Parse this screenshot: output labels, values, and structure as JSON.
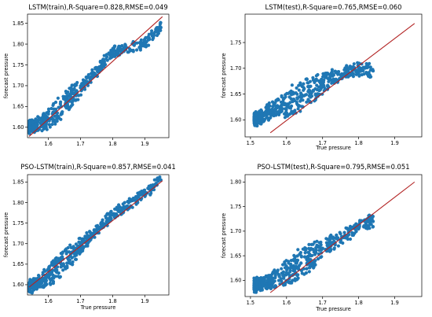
{
  "chart_data": [
    {
      "type": "scatter",
      "title": "LSTM(train),R-Square=0.828,RMSE=0.049",
      "xlabel": "",
      "ylabel": "forecast pressure",
      "xlim": [
        1.535,
        1.975
      ],
      "ylim": [
        1.575,
        1.872
      ],
      "xticks": [
        "1.6",
        "1.7",
        "1.8",
        "1.9"
      ],
      "yticks": [
        "1.60",
        "1.65",
        "1.70",
        "1.75",
        "1.80",
        "1.85"
      ],
      "point_color": "#1f77b4",
      "line_color": "#b22222",
      "fit_line": {
        "x": [
          1.54,
          1.955
        ],
        "y": [
          1.578,
          1.866
        ]
      },
      "series": [
        {
          "x": [
            1.54,
            1.56,
            1.58,
            1.6,
            1.62,
            1.64,
            1.66,
            1.68,
            1.7,
            1.72,
            1.74,
            1.76,
            1.8,
            1.9,
            1.95
          ],
          "y": [
            1.6,
            1.605,
            1.61,
            1.62,
            1.635,
            1.65,
            1.665,
            1.68,
            1.695,
            1.71,
            1.725,
            1.745,
            1.78,
            1.8,
            1.84
          ]
        }
      ]
    },
    {
      "type": "scatter",
      "title": "LSTM(test),R-Square=0.765,RMSE=0.060",
      "xlabel": "True pressure",
      "ylabel": "forecast pressure",
      "xlim": [
        1.485,
        1.975
      ],
      "ylim": [
        1.567,
        1.805
      ],
      "xticks": [
        "1.5",
        "1.6",
        "1.7",
        "1.8",
        "1.9"
      ],
      "yticks": [
        "1.60",
        "1.65",
        "1.70",
        "1.75"
      ],
      "point_color": "#1f77b4",
      "line_color": "#b22222",
      "fit_line": {
        "x": [
          1.555,
          1.955
        ],
        "y": [
          1.575,
          1.787
        ]
      },
      "series": [
        {
          "x": [
            1.51,
            1.54,
            1.56,
            1.58,
            1.6,
            1.62,
            1.64,
            1.66,
            1.68,
            1.7,
            1.72,
            1.76,
            1.8,
            1.84
          ],
          "y": [
            1.6,
            1.61,
            1.62,
            1.625,
            1.63,
            1.64,
            1.645,
            1.655,
            1.66,
            1.67,
            1.68,
            1.69,
            1.7,
            1.695
          ]
        }
      ]
    },
    {
      "type": "scatter",
      "title": "PSO-LSTM(train),R-Square=0.857,RMSE=0.041",
      "xlabel": "True pressure",
      "ylabel": "forecast pressure",
      "xlim": [
        1.535,
        1.975
      ],
      "ylim": [
        1.575,
        1.868
      ],
      "xticks": [
        "1.6",
        "1.7",
        "1.8",
        "1.9"
      ],
      "yticks": [
        "1.60",
        "1.65",
        "1.70",
        "1.75",
        "1.80",
        "1.85"
      ],
      "point_color": "#1f77b4",
      "line_color": "#b22222",
      "fit_line": {
        "x": [
          1.54,
          1.955
        ],
        "y": [
          1.594,
          1.853
        ]
      },
      "series": [
        {
          "x": [
            1.54,
            1.56,
            1.58,
            1.6,
            1.62,
            1.64,
            1.66,
            1.68,
            1.7,
            1.72,
            1.74,
            1.76,
            1.8,
            1.9,
            1.95
          ],
          "y": [
            1.595,
            1.6,
            1.61,
            1.62,
            1.635,
            1.65,
            1.665,
            1.68,
            1.695,
            1.71,
            1.725,
            1.74,
            1.77,
            1.82,
            1.855
          ]
        }
      ]
    },
    {
      "type": "scatter",
      "title": "PSO-LSTM(test),R-Square=0.795,RMSE=0.051",
      "xlabel": "True pressure",
      "ylabel": "forecast pressure",
      "xlim": [
        1.485,
        1.975
      ],
      "ylim": [
        1.567,
        1.815
      ],
      "xticks": [
        "1.5",
        "1.6",
        "1.7",
        "1.8",
        "1.9"
      ],
      "yticks": [
        "1.60",
        "1.65",
        "1.70",
        "1.75",
        "1.80"
      ],
      "point_color": "#1f77b4",
      "line_color": "#b22222",
      "fit_line": {
        "x": [
          1.555,
          1.955
        ],
        "y": [
          1.575,
          1.8
        ]
      },
      "series": [
        {
          "x": [
            1.51,
            1.54,
            1.56,
            1.58,
            1.6,
            1.62,
            1.64,
            1.66,
            1.68,
            1.7,
            1.72,
            1.76,
            1.8,
            1.84
          ],
          "y": [
            1.59,
            1.595,
            1.6,
            1.61,
            1.615,
            1.625,
            1.635,
            1.645,
            1.655,
            1.665,
            1.675,
            1.69,
            1.71,
            1.72
          ]
        }
      ]
    }
  ]
}
